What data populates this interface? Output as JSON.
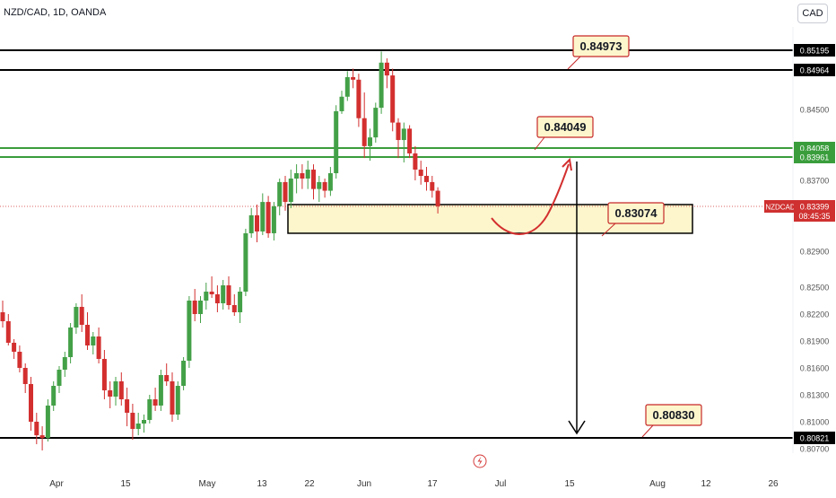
{
  "header": {
    "symbol_title": "NZD/CAD, 1D, OANDA",
    "currency_button": "CAD"
  },
  "chart_data": {
    "type": "candlestick",
    "symbol": "NZDCAD",
    "price_axis_labels": [
      "0.84500",
      "0.83700",
      "0.82900",
      "0.82500",
      "0.82200",
      "0.81900",
      "0.81600",
      "0.81300",
      "0.81000",
      "0.80700"
    ],
    "time_axis_labels": [
      "Apr",
      "15",
      "May",
      "13",
      "22",
      "Jun",
      "17",
      "Jul",
      "15",
      "Aug",
      "12",
      "26"
    ],
    "horizontal_levels": [
      {
        "price": "0.85195",
        "color": "#000000"
      },
      {
        "price": "0.84964",
        "color": "#000000"
      },
      {
        "price": "0.84058",
        "color": "#3a9d3c"
      },
      {
        "price": "0.83961",
        "color": "#3a9d3c"
      },
      {
        "price": "0.80821",
        "color": "#000000"
      }
    ],
    "current_price": {
      "symbol_label": "NZDCAD",
      "price": "0.83399",
      "countdown": "08:45:35",
      "color": "#cf3030"
    },
    "annotations": [
      "0.84973",
      "0.84049",
      "0.83074",
      "0.80830"
    ],
    "demand_zone": {
      "top": 0.8342,
      "bottom": 0.831
    },
    "candles": [
      [
        0.8222,
        0.8235,
        0.8205,
        0.8212
      ],
      [
        0.8212,
        0.822,
        0.8185,
        0.8188
      ],
      [
        0.8188,
        0.8192,
        0.817,
        0.8178
      ],
      [
        0.8178,
        0.8185,
        0.8155,
        0.816
      ],
      [
        0.816,
        0.8165,
        0.8132,
        0.8142
      ],
      [
        0.8142,
        0.815,
        0.809,
        0.81
      ],
      [
        0.81,
        0.811,
        0.8075,
        0.8085
      ],
      [
        0.8085,
        0.8095,
        0.8068,
        0.8082
      ],
      [
        0.8082,
        0.8125,
        0.8078,
        0.8118
      ],
      [
        0.8118,
        0.8145,
        0.8112,
        0.814
      ],
      [
        0.814,
        0.8162,
        0.8132,
        0.8158
      ],
      [
        0.8158,
        0.8178,
        0.815,
        0.8172
      ],
      [
        0.8172,
        0.821,
        0.8165,
        0.8205
      ],
      [
        0.8205,
        0.8232,
        0.8198,
        0.8228
      ],
      [
        0.8228,
        0.8242,
        0.82,
        0.8208
      ],
      [
        0.8208,
        0.8222,
        0.818,
        0.8185
      ],
      [
        0.8185,
        0.82,
        0.8175,
        0.8195
      ],
      [
        0.8195,
        0.8205,
        0.8165,
        0.817
      ],
      [
        0.817,
        0.818,
        0.8125,
        0.8135
      ],
      [
        0.8135,
        0.8145,
        0.8115,
        0.8128
      ],
      [
        0.8128,
        0.815,
        0.8118,
        0.8145
      ],
      [
        0.8145,
        0.8155,
        0.8118,
        0.8125
      ],
      [
        0.8125,
        0.8138,
        0.8095,
        0.811
      ],
      [
        0.811,
        0.812,
        0.808,
        0.8092
      ],
      [
        0.8092,
        0.811,
        0.8085,
        0.8098
      ],
      [
        0.8098,
        0.8108,
        0.8088,
        0.8102
      ],
      [
        0.8102,
        0.813,
        0.8098,
        0.8125
      ],
      [
        0.8125,
        0.8138,
        0.8112,
        0.8118
      ],
      [
        0.8118,
        0.8158,
        0.8112,
        0.8152
      ],
      [
        0.8152,
        0.8165,
        0.814,
        0.8145
      ],
      [
        0.8145,
        0.8155,
        0.81,
        0.8108
      ],
      [
        0.8108,
        0.8145,
        0.8102,
        0.814
      ],
      [
        0.814,
        0.8172,
        0.8135,
        0.8168
      ],
      [
        0.8168,
        0.824,
        0.816,
        0.8235
      ],
      [
        0.8235,
        0.8248,
        0.8212,
        0.822
      ],
      [
        0.822,
        0.824,
        0.821,
        0.8235
      ],
      [
        0.8235,
        0.8255,
        0.8225,
        0.8245
      ],
      [
        0.8245,
        0.8262,
        0.8238,
        0.8242
      ],
      [
        0.8242,
        0.8252,
        0.8222,
        0.8232
      ],
      [
        0.8232,
        0.8258,
        0.8225,
        0.8252
      ],
      [
        0.8252,
        0.8262,
        0.8225,
        0.823
      ],
      [
        0.823,
        0.8242,
        0.8218,
        0.8222
      ],
      [
        0.8222,
        0.825,
        0.821,
        0.8245
      ],
      [
        0.8245,
        0.8315,
        0.824,
        0.831
      ],
      [
        0.831,
        0.8338,
        0.8305,
        0.833
      ],
      [
        0.833,
        0.8342,
        0.83,
        0.8312
      ],
      [
        0.8312,
        0.8355,
        0.8308,
        0.8345
      ],
      [
        0.8345,
        0.8352,
        0.8305,
        0.831
      ],
      [
        0.831,
        0.8345,
        0.8302,
        0.834
      ],
      [
        0.834,
        0.8372,
        0.833,
        0.8368
      ],
      [
        0.8368,
        0.8375,
        0.8335,
        0.8345
      ],
      [
        0.8345,
        0.8382,
        0.8338,
        0.8372
      ],
      [
        0.8372,
        0.8388,
        0.8355,
        0.8378
      ],
      [
        0.8378,
        0.8388,
        0.836,
        0.8372
      ],
      [
        0.8372,
        0.8392,
        0.836,
        0.8382
      ],
      [
        0.8382,
        0.8388,
        0.8348,
        0.836
      ],
      [
        0.836,
        0.8375,
        0.8345,
        0.8368
      ],
      [
        0.8368,
        0.8372,
        0.835,
        0.8358
      ],
      [
        0.8358,
        0.8385,
        0.8352,
        0.8378
      ],
      [
        0.8378,
        0.8455,
        0.8372,
        0.8448
      ],
      [
        0.8448,
        0.8472,
        0.8445,
        0.8465
      ],
      [
        0.8465,
        0.8495,
        0.846,
        0.8488
      ],
      [
        0.8488,
        0.8498,
        0.8475,
        0.8485
      ],
      [
        0.8485,
        0.8492,
        0.843,
        0.844
      ],
      [
        0.844,
        0.847,
        0.8395,
        0.8408
      ],
      [
        0.8408,
        0.8428,
        0.8392,
        0.8418
      ],
      [
        0.8418,
        0.8458,
        0.8412,
        0.8452
      ],
      [
        0.8452,
        0.8518,
        0.8445,
        0.8505
      ],
      [
        0.8505,
        0.851,
        0.8475,
        0.849
      ],
      [
        0.849,
        0.8498,
        0.8425,
        0.8435
      ],
      [
        0.8435,
        0.844,
        0.8395,
        0.8415
      ],
      [
        0.8415,
        0.8435,
        0.839,
        0.8428
      ],
      [
        0.8428,
        0.8432,
        0.8395,
        0.84
      ],
      [
        0.84,
        0.8408,
        0.837,
        0.8382
      ],
      [
        0.8382,
        0.8392,
        0.8365,
        0.8375
      ],
      [
        0.8375,
        0.8385,
        0.8358,
        0.8368
      ],
      [
        0.8368,
        0.8375,
        0.835,
        0.8358
      ],
      [
        0.8358,
        0.8362,
        0.8332,
        0.834
      ]
    ]
  },
  "footer": {
    "flash_icon": "lightning-icon"
  }
}
